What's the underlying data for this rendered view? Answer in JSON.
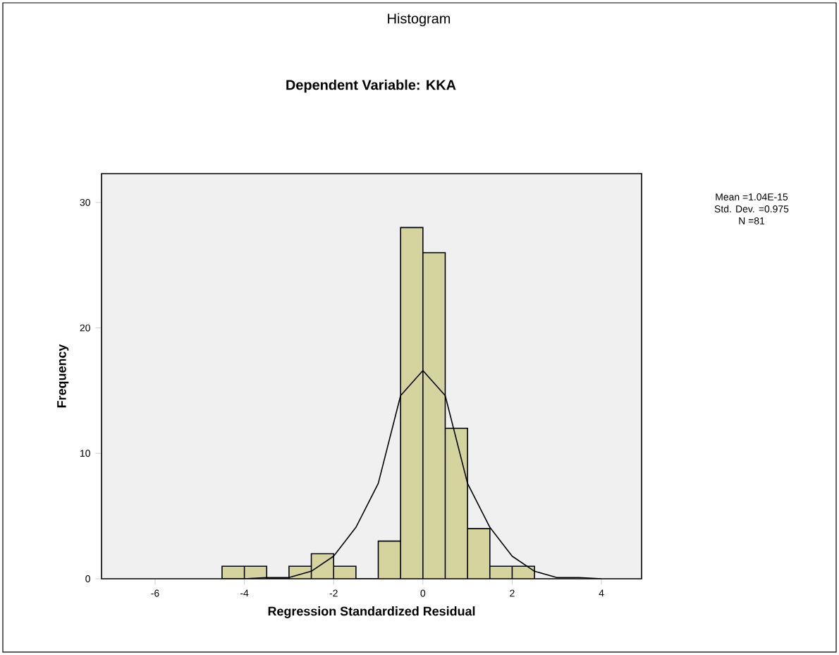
{
  "chart_data": {
    "type": "histogram",
    "title": "Histogram",
    "subtitle": "Dependent Variable: KKA",
    "xlabel": "Regression Standardized Residual",
    "ylabel": "Frequency",
    "bins": [
      -4.5,
      -4,
      -3.5,
      -3,
      -2.5,
      -2,
      -1.5,
      -1,
      -0.5,
      0,
      0.5,
      1,
      1.5,
      2,
      2.5
    ],
    "values": [
      1,
      1,
      0,
      1,
      2,
      1,
      0,
      3,
      28,
      26,
      12,
      4,
      1,
      1
    ],
    "color": "#d6d49e",
    "series": [
      {
        "type": "line",
        "color": "#000000",
        "x": [
          -4.5,
          -4,
          -3.5,
          -3,
          -2.5,
          -2,
          -1.5,
          -1,
          -0.5,
          0,
          0.5,
          1,
          1.5,
          2,
          2.5,
          3,
          3.5,
          4
        ],
        "values": [
          0,
          0,
          0.1,
          0.1,
          0.6,
          1.8,
          4.1,
          7.6,
          14.6,
          16.6,
          14.6,
          7.6,
          4.1,
          1.8,
          0.6,
          0.1,
          0.1,
          0
        ]
      }
    ],
    "xlim": [
      -7.2,
      4.9
    ],
    "ylim": [
      0,
      32.3
    ],
    "xticks": [
      -6,
      -4,
      -2,
      0,
      2,
      4
    ],
    "yticks": [
      0,
      10,
      20,
      30
    ],
    "annotations": [
      "Mean =1.04E-15",
      "Std. Dev. =0.975",
      "N =81"
    ]
  }
}
